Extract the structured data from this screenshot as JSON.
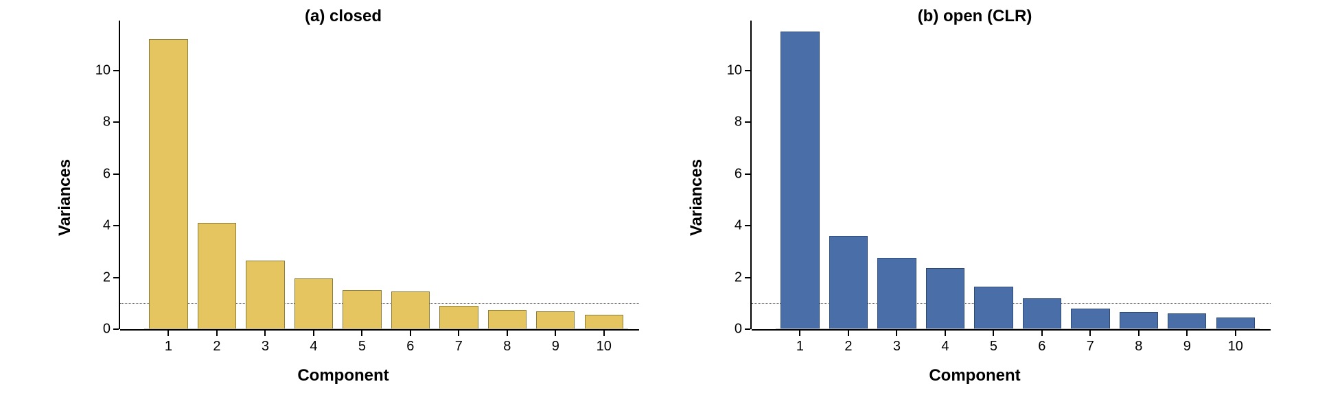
{
  "charts": [
    {
      "title": "(a) closed",
      "type": "bar",
      "categories": [
        1,
        2,
        3,
        4,
        5,
        6,
        7,
        8,
        9,
        10
      ],
      "values": [
        11.2,
        4.1,
        2.65,
        1.95,
        1.5,
        1.45,
        0.9,
        0.75,
        0.7,
        0.55
      ],
      "bar_color": "#e5c55f",
      "bar_border": "#8b7c3a",
      "ylim": [
        0,
        11.5
      ],
      "yticks": [
        0,
        2,
        4,
        6,
        8,
        10
      ],
      "xlabel": "Component",
      "ylabel": "Variances",
      "hline": 1.0,
      "bar_width": 0.8,
      "background_color": "#ffffff",
      "title_fontsize": 24,
      "label_fontsize": 24,
      "tick_fontsize": 20
    },
    {
      "title": "(b) open (CLR)",
      "type": "bar",
      "categories": [
        1,
        2,
        3,
        4,
        5,
        6,
        7,
        8,
        9,
        10
      ],
      "values": [
        11.5,
        3.6,
        2.75,
        2.35,
        1.65,
        1.2,
        0.8,
        0.65,
        0.6,
        0.45
      ],
      "bar_color": "#4a6ea8",
      "bar_border": "#2e4a78",
      "ylim": [
        0,
        11.5
      ],
      "yticks": [
        0,
        2,
        4,
        6,
        8,
        10
      ],
      "xlabel": "Component",
      "ylabel": "Variances",
      "hline": 1.0,
      "bar_width": 0.8,
      "background_color": "#ffffff",
      "title_fontsize": 24,
      "label_fontsize": 24,
      "tick_fontsize": 20
    }
  ]
}
